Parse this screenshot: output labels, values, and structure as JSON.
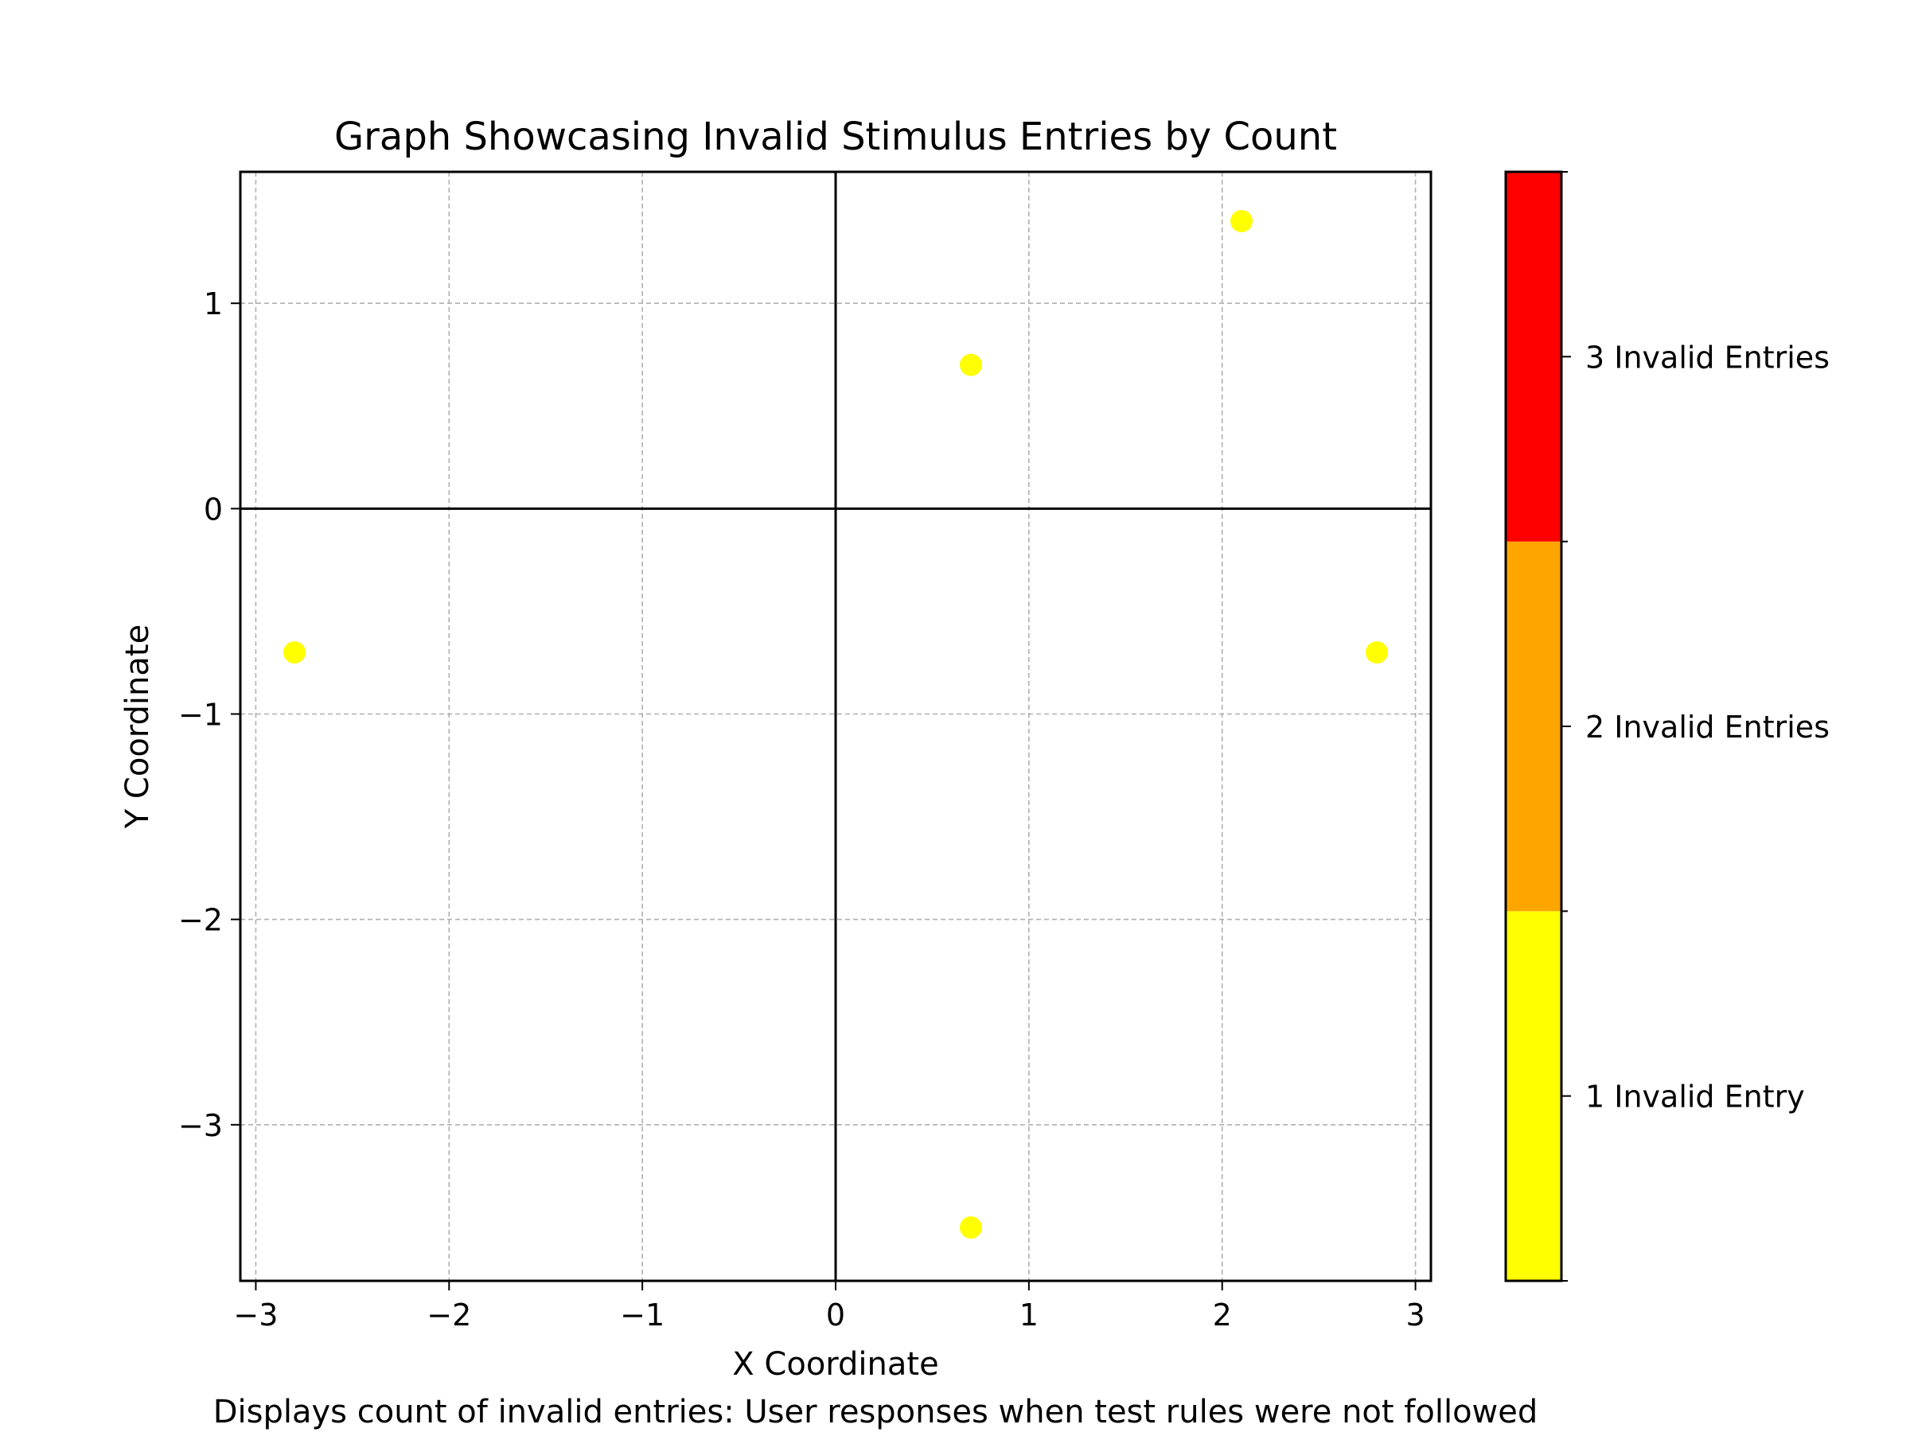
{
  "chart_data": {
    "type": "scatter",
    "title": "Graph Showcasing Invalid Stimulus Entries by Count",
    "xlabel": "X Coordinate",
    "ylabel": "Y Coordinate",
    "caption": "Displays count of invalid entries: User responses when test rules were not followed",
    "xlim": [
      -3.08,
      3.08
    ],
    "ylim": [
      -3.76,
      1.64
    ],
    "xticks": [
      -3,
      -2,
      -1,
      0,
      1,
      2,
      3
    ],
    "xtick_labels": [
      "−3",
      "−2",
      "−1",
      "0",
      "1",
      "2",
      "3"
    ],
    "yticks": [
      -3,
      -2,
      -1,
      0,
      1
    ],
    "ytick_labels": [
      "−3",
      "−2",
      "−1",
      "0",
      "1"
    ],
    "grid": true,
    "points": [
      {
        "x": 0.7,
        "y": 0.7,
        "count": 1
      },
      {
        "x": 2.1,
        "y": 1.4,
        "count": 1
      },
      {
        "x": -2.8,
        "y": -0.7,
        "count": 1
      },
      {
        "x": 2.8,
        "y": -0.7,
        "count": 1
      },
      {
        "x": 0.7,
        "y": -3.5,
        "count": 1
      }
    ],
    "colorbar": {
      "levels": [
        {
          "value": 1,
          "label": "1 Invalid Entry",
          "color": "#ffff00"
        },
        {
          "value": 2,
          "label": "2 Invalid Entries",
          "color": "#ffa500"
        },
        {
          "value": 3,
          "label": "3 Invalid Entries",
          "color": "#ff0000"
        }
      ],
      "range": [
        0.5,
        3.5
      ]
    }
  }
}
